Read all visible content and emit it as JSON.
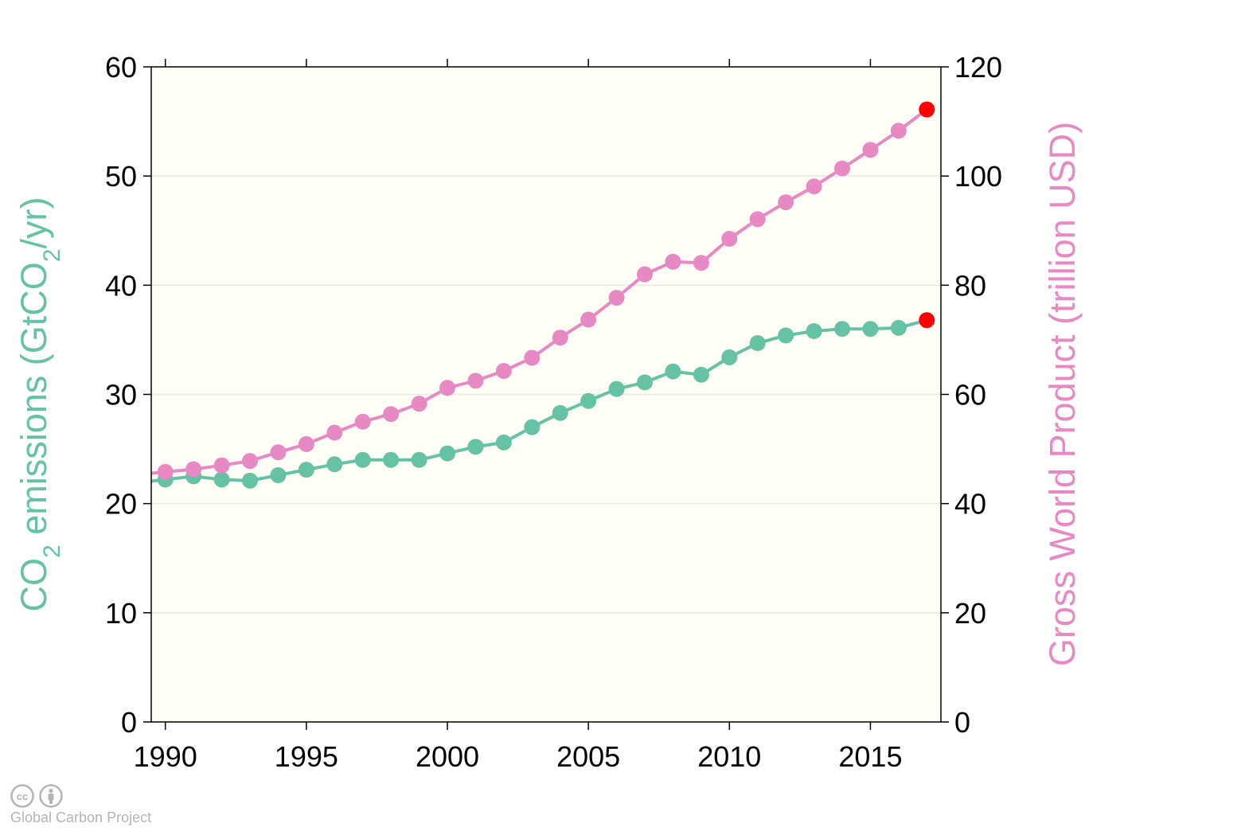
{
  "chart_data": {
    "type": "line",
    "x": [
      1990,
      1991,
      1992,
      1993,
      1994,
      1995,
      1996,
      1997,
      1998,
      1999,
      2000,
      2001,
      2002,
      2003,
      2004,
      2005,
      2006,
      2007,
      2008,
      2009,
      2010,
      2011,
      2012,
      2013,
      2014,
      2015,
      2016,
      2017
    ],
    "series": [
      {
        "axis": "left",
        "color": "#66c2a5",
        "values": [
          22.2,
          22.5,
          22.2,
          22.1,
          22.6,
          23.1,
          23.6,
          24.0,
          24.0,
          24.0,
          24.6,
          25.2,
          25.6,
          27.0,
          28.3,
          29.4,
          30.5,
          31.1,
          32.1,
          31.8,
          33.4,
          34.7,
          35.4,
          35.8,
          36.0,
          36.0,
          36.1,
          36.8
        ]
      },
      {
        "axis": "right",
        "color": "#e78ac3",
        "values": [
          45.8,
          46.3,
          47.0,
          47.8,
          49.4,
          50.9,
          53.0,
          55.0,
          56.4,
          58.3,
          61.2,
          62.5,
          64.3,
          66.7,
          70.4,
          73.7,
          77.7,
          82.0,
          84.3,
          84.1,
          88.5,
          92.1,
          95.2,
          98.1,
          101.4,
          104.8,
          108.3,
          112.2
        ]
      }
    ],
    "highlight": {
      "index": 27,
      "color": "#ff0000"
    },
    "xlim": [
      1989.5,
      2017.5
    ],
    "xticks": [
      1990,
      1995,
      2000,
      2005,
      2010,
      2015
    ],
    "ylim_left": [
      0,
      60
    ],
    "yticks_left": [
      0,
      10,
      20,
      30,
      40,
      50,
      60
    ],
    "ylim_right": [
      0,
      120
    ],
    "yticks_right": [
      0,
      20,
      40,
      60,
      80,
      100,
      120
    ],
    "ylabel_left": {
      "pre": "CO",
      "sub": "2",
      "mid": " emissions (GtCO",
      "sub2": "2",
      "post": "/yr)"
    },
    "ylabel_right": "Gross World Product (trillion USD)",
    "grid": true,
    "background": "#fefef6"
  },
  "credit": {
    "org": "Global Carbon Project",
    "icons": [
      "cc-icon",
      "attribution-icon"
    ]
  }
}
